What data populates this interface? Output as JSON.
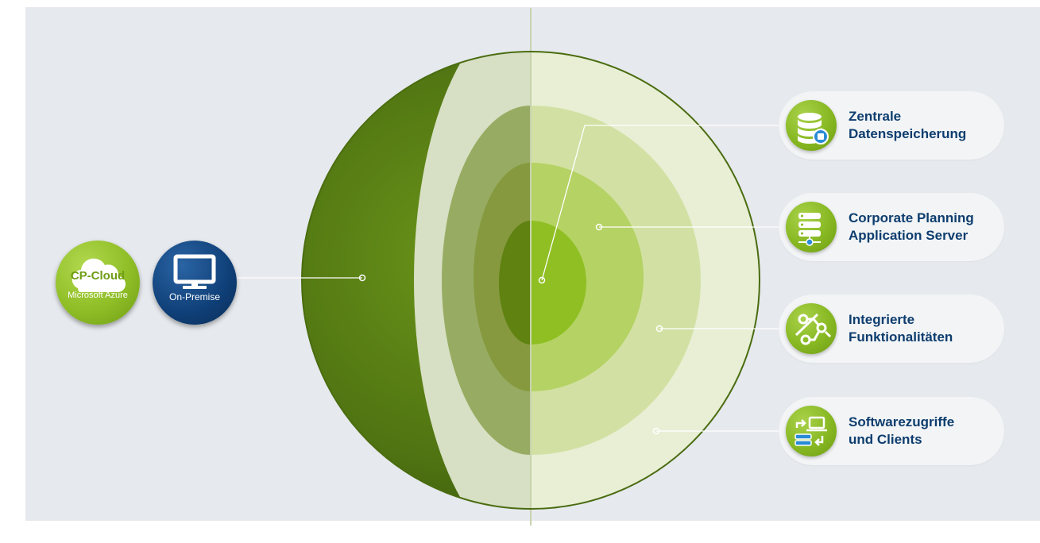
{
  "colors": {
    "panel_background": "#e6e9ed",
    "sphere_dark_green": "#4f7312",
    "core_green": "#8fbf22",
    "label_blue": "#0d3d6e",
    "icon_green": "#87b822",
    "onpremise_blue": "#0f3f77"
  },
  "deployment": {
    "cloud": {
      "title": "CP-Cloud",
      "subtitle": "Microsoft Azure",
      "icon": "cloud-icon"
    },
    "onpremise": {
      "subtitle": "On-Premise",
      "icon": "monitor-icon"
    }
  },
  "layers": [
    {
      "label": "Zentrale\nDatenspeicherung",
      "icon": "database-icon"
    },
    {
      "label": "Corporate Planning\nApplication Server",
      "icon": "server-icon"
    },
    {
      "label": "Integrierte\nFunktionalitäten",
      "icon": "nodes-icon"
    },
    {
      "label": "Softwarezugriffe\nund Clients",
      "icon": "client-access-icon"
    }
  ]
}
